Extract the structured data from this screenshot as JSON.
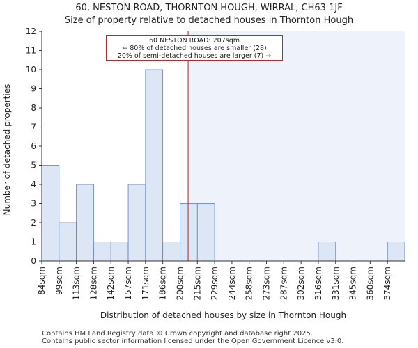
{
  "header": {
    "title": "60, NESTON ROAD, THORNTON HOUGH, WIRRAL, CH63 1JF",
    "subtitle": "Size of property relative to detached houses in Thornton Hough"
  },
  "footer": {
    "line1": "Contains HM Land Registry data © Crown copyright and database right 2025.",
    "line2": "Contains public sector information licensed under the Open Government Licence v3.0."
  },
  "chart_data": {
    "type": "bar",
    "title": "60, NESTON ROAD, THORNTON HOUGH, WIRRAL, CH63 1JF",
    "subtitle": "Size of property relative to detached houses in Thornton Hough",
    "xlabel": "Distribution of detached houses by size in Thornton Hough",
    "ylabel": "Number of detached properties",
    "categories": [
      "84sqm",
      "99sqm",
      "113sqm",
      "128sqm",
      "142sqm",
      "157sqm",
      "171sqm",
      "186sqm",
      "200sqm",
      "215sqm",
      "229sqm",
      "244sqm",
      "258sqm",
      "273sqm",
      "287sqm",
      "302sqm",
      "316sqm",
      "331sqm",
      "345sqm",
      "360sqm",
      "374sqm"
    ],
    "values": [
      5,
      2,
      4,
      1,
      1,
      4,
      10,
      1,
      3,
      3,
      0,
      0,
      0,
      0,
      0,
      0,
      1,
      0,
      0,
      0,
      1
    ],
    "ylim": [
      0,
      12
    ],
    "yticks": [
      0,
      1,
      2,
      3,
      4,
      5,
      6,
      7,
      8,
      9,
      10,
      11,
      12
    ],
    "marker": {
      "value": 207,
      "label": "60 NESTON ROAD: 207sqm"
    },
    "annotation": {
      "line1": "60 NESTON ROAD: 207sqm",
      "line2": "← 80% of detached houses are smaller (28)",
      "line3": "20% of semi-detached houses are larger (7) →"
    },
    "colors": {
      "bar": "#dce6f5",
      "bar_edge": "#5b7fc4",
      "marker": "#b22222",
      "shade": "#eef2fb"
    }
  }
}
